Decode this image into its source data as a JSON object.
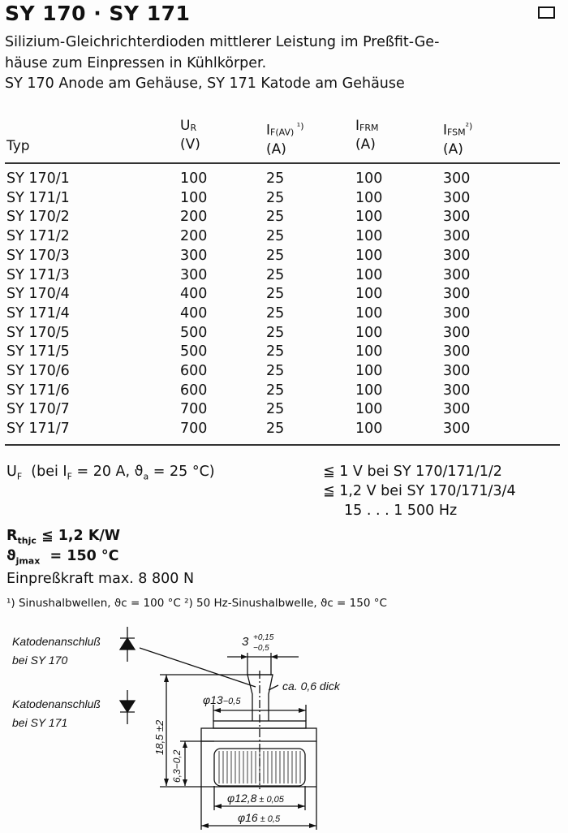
{
  "title": "SY 170 · SY 171",
  "description": [
    "Silizium-Gleichrichterdioden mittlerer Leistung im Preßfit-Ge-",
    "häuse zum Einpressen in Kühlkörper.",
    "SY 170 Anode am Gehäuse, SY 171 Katode am Gehäuse"
  ],
  "table": {
    "headers": [
      {
        "main": "Typ",
        "sub": "",
        "sup": "",
        "unit": ""
      },
      {
        "main": "U",
        "sub": "R",
        "sup": "",
        "unit": "(V)"
      },
      {
        "main": "I",
        "sub": "F(AV)",
        "sup": " ¹)",
        "unit": "(A)"
      },
      {
        "main": "I",
        "sub": "FRM",
        "sup": "",
        "unit": "(A)"
      },
      {
        "main": "I",
        "sub": "FSM",
        "sup": "²)",
        "unit": "(A)"
      }
    ],
    "rows": [
      [
        "SY 170/1",
        "100",
        "25",
        "100",
        "300"
      ],
      [
        "SY 171/1",
        "100",
        "25",
        "100",
        "300"
      ],
      [
        "SY 170/2",
        "200",
        "25",
        "100",
        "300"
      ],
      [
        "SY 171/2",
        "200",
        "25",
        "100",
        "300"
      ],
      [
        "SY 170/3",
        "300",
        "25",
        "100",
        "300"
      ],
      [
        "SY 171/3",
        "300",
        "25",
        "100",
        "300"
      ],
      [
        "SY 170/4",
        "400",
        "25",
        "100",
        "300"
      ],
      [
        "SY 171/4",
        "400",
        "25",
        "100",
        "300"
      ],
      [
        "SY 170/5",
        "500",
        "25",
        "100",
        "300"
      ],
      [
        "SY 171/5",
        "500",
        "25",
        "100",
        "300"
      ],
      [
        "SY 170/6",
        "600",
        "25",
        "100",
        "300"
      ],
      [
        "SY 171/6",
        "600",
        "25",
        "100",
        "300"
      ],
      [
        "SY 170/7",
        "700",
        "25",
        "100",
        "300"
      ],
      [
        "SY 171/7",
        "700",
        "25",
        "100",
        "300"
      ]
    ]
  },
  "specs": {
    "uf_label": "U",
    "uf_sub": "F",
    "uf_cond": "(bei I",
    "uf_cond_sub": "F",
    "uf_cond_rest": " = 20 A, ϑ",
    "uf_cond_sub2": "a",
    "uf_cond_end": " = 25 °C)",
    "uf_val1": "≦ 1 V bei SY 170/171/1/2",
    "uf_val2": "≦ 1,2 V bei SY 170/171/3/4",
    "freq": "15 . . . 1 500 Hz",
    "rth_label": "R",
    "rth_sub": "thjc",
    "rth_val": "≦ 1,2 K/W",
    "tj_label": "ϑ",
    "tj_sub": "jmax",
    "tj_val": "= 150 °C",
    "force": "Einpreßkraft max. 8 800 N",
    "footnote": "¹) Sinushalbwellen, ϑc = 100 °C   ²) 50 Hz-Sinushalbwelle, ϑc = 150 °C"
  },
  "drawing": {
    "cathode_170_line1": "Katodenanschluß",
    "cathode_170_line2": "bei SY 170",
    "cathode_171_line1": "Katodenanschluß",
    "cathode_171_line2": "bei SY 171",
    "tab_width": "3",
    "tab_width_tol_plus": "+0,15",
    "tab_width_tol_minus": "−0,5",
    "thickness": "ca. 0,6 dick",
    "d13": "φ13",
    "d13_tol": "−0,5",
    "height": "18,5 ±2",
    "body_height": "6,3−0,2",
    "d128": "φ12,8",
    "d128_tol": "± 0,05",
    "d16": "φ16",
    "d16_tol": "± 0,5"
  }
}
